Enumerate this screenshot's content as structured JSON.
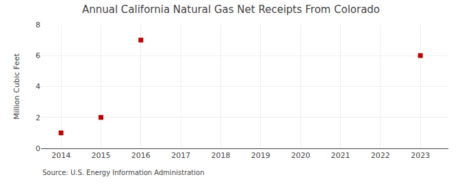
{
  "chart_data": {
    "type": "scatter",
    "title": "Annual California Natural Gas Net Receipts From Colorado",
    "ylabel": "Million Cubic Feet",
    "annotations": [
      "Source: U.S. Energy Information Administration"
    ],
    "x": [
      2014,
      2015,
      2016,
      2023
    ],
    "values": [
      1.0,
      2.0,
      7.0,
      6.0
    ],
    "color": "#c00000",
    "marker": "square",
    "xlim": [
      2013.5,
      2023.7
    ],
    "ylim": [
      0,
      8
    ],
    "xticks": [
      2014,
      2015,
      2016,
      2017,
      2018,
      2019,
      2020,
      2021,
      2022,
      2023
    ],
    "yticks": [
      0,
      2,
      4,
      6,
      8
    ],
    "grid": true
  }
}
